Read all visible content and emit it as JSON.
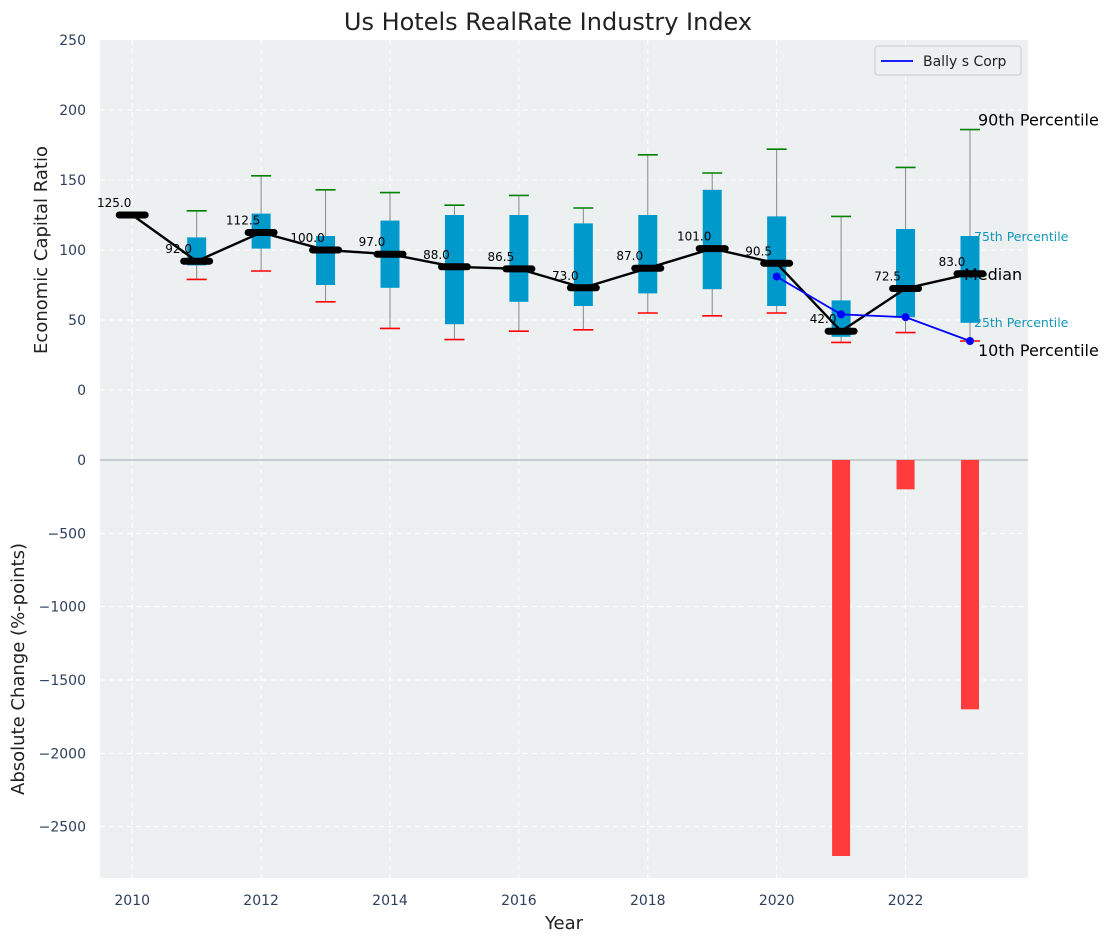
{
  "colors": {
    "panel_bg": "#ecf0f1",
    "box_fill": "#0099cc",
    "median_line": "#000000",
    "company_line": "#0000ff",
    "p90_cap": "#008000",
    "p10_cap": "#ff0000",
    "whisker": "#888888",
    "change_bar": "#ff3b3b",
    "label_cyan": "#1197b8"
  },
  "chart_data": [
    {
      "type": "box",
      "title": "Us Hotels RealRate Industry Index",
      "ylabel": "Economic Capital Ratio",
      "ylim": [
        -50,
        250
      ],
      "yticks": [
        0,
        50,
        100,
        150,
        200,
        250
      ],
      "xlim": [
        2009.5,
        2023.9
      ],
      "grid": true,
      "years": [
        2010,
        2011,
        2012,
        2013,
        2014,
        2015,
        2016,
        2017,
        2018,
        2019,
        2020,
        2021,
        2022,
        2023
      ],
      "p10": [
        125,
        79,
        85,
        63,
        44,
        36,
        42,
        43,
        55,
        53,
        55,
        34,
        41,
        35
      ],
      "p25": [
        125,
        89,
        101,
        75,
        73,
        47,
        63,
        60,
        69,
        72,
        60,
        38,
        52,
        48
      ],
      "median": [
        125.0,
        92.0,
        112.5,
        100.0,
        97.0,
        88.0,
        86.5,
        73.0,
        87.0,
        101.0,
        90.5,
        42.0,
        72.5,
        83.0
      ],
      "median_labels": [
        "125.0",
        "92.0",
        "112.5",
        "100.0",
        "97.0",
        "88.0",
        "86.5",
        "73.0",
        "87.0",
        "101.0",
        "90.5",
        "42.0",
        "72.5",
        "83.0"
      ],
      "p75": [
        125,
        109,
        126,
        110,
        121,
        125,
        125,
        119,
        125,
        143,
        124,
        64,
        115,
        110
      ],
      "p90": [
        125,
        128,
        153,
        143,
        141,
        132,
        139,
        130,
        168,
        155,
        172,
        124,
        159,
        186
      ],
      "company": {
        "name": "Bally s Corp",
        "years": [
          2020,
          2021,
          2022,
          2023
        ],
        "values": [
          81,
          54,
          52,
          35
        ]
      },
      "legend": {
        "placement": "top-right",
        "entries": [
          "Bally s Corp"
        ]
      },
      "annotations": {
        "p90": "90th Percentile",
        "p75": "75th Percentile",
        "median": "Median",
        "p25": "25th Percentile",
        "p10": "10th Percentile"
      }
    },
    {
      "type": "bar",
      "ylabel": "Absolute Change (%-points)",
      "xlabel": "Year",
      "ylim": [
        -2850,
        0
      ],
      "yticks": [
        0,
        -500,
        -1000,
        -1500,
        -2000,
        -2500
      ],
      "ytick_labels": [
        "0",
        "−500",
        "−1000",
        "−1500",
        "−2000",
        "−2500"
      ],
      "xticks": [
        2010,
        2012,
        2014,
        2016,
        2018,
        2020,
        2022
      ],
      "grid": true,
      "years": [
        2021,
        2022,
        2023
      ],
      "values": [
        -2700,
        -200,
        -1700
      ]
    }
  ]
}
